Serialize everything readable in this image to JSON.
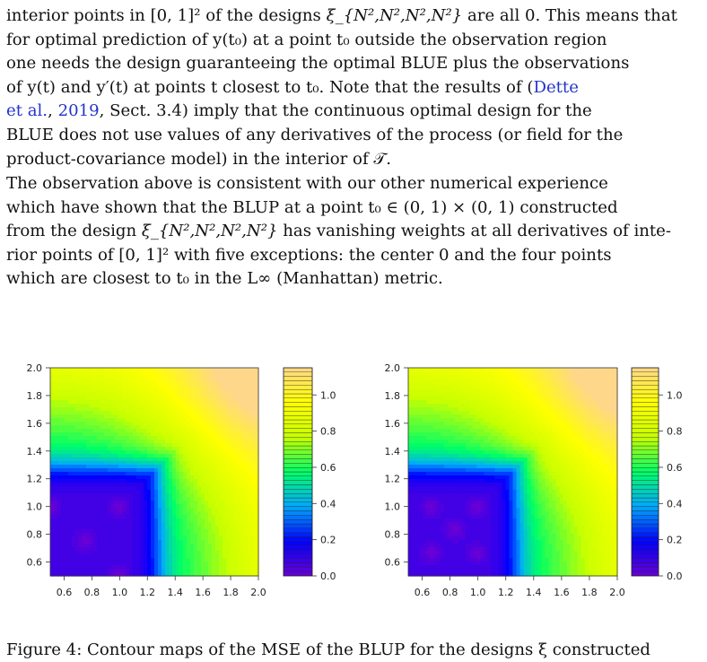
{
  "paragraph1": {
    "line1a": "interior points in ",
    "line1b": " of the designs ",
    "line1c": " are all 0. This means that",
    "set_unit_square": "[0, 1]²",
    "design_symbol": "ξ_{N²,N²,N²,N²}",
    "line2": "for optimal prediction of y(t₀) at a point t₀ outside the observation region",
    "line3": "one needs the design guaranteeing the optimal BLUE plus the observations",
    "line4a": "of y(t) and y′(t) at points t closest to t₀. Note that the results of (",
    "cite1": "Dette",
    "cite2": "et al.",
    "cite_sep": ", ",
    "cite_year": "2019",
    "line5b": ", Sect. 3.4) imply that the continuous optimal design for the",
    "line6": "BLUE does not use values of any derivatives of the process (or field for the",
    "line7": "product-covariance model) in the interior of 𝒯."
  },
  "paragraph2": {
    "line1": "The observation above is consistent with our other numerical experience",
    "line2": "which have shown that the BLUP at a point t₀ ∈ (0, 1) × (0, 1) constructed",
    "line3a": "from the design ",
    "line3b": " has vanishing weights at all derivatives of inte-",
    "design_symbol": "ξ_{N²,N²,N²,N²}",
    "line4": "rior points of [0, 1]² with five exceptions: the center 0 and the four points",
    "line5": "which are closest to t₀ in the L∞ (Manhattan) metric."
  },
  "figure": {
    "y_ticks": [
      "0.6",
      "0.8",
      "1.0",
      "1.2",
      "1.4",
      "1.6",
      "1.8",
      "2.0"
    ],
    "x_ticks": [
      "0.6",
      "0.8",
      "1.0",
      "1.2",
      "1.4",
      "1.6",
      "1.8",
      "2.0"
    ],
    "colorbar_ticks": [
      "0.0",
      "0.2",
      "0.4",
      "0.6",
      "0.8",
      "1.0"
    ]
  },
  "chart_data": [
    {
      "type": "heatmap",
      "title": "",
      "xlabel": "",
      "ylabel": "",
      "xlim": [
        0.5,
        2.0
      ],
      "ylim": [
        0.5,
        2.0
      ],
      "zlim": [
        0.0,
        1.15
      ],
      "x_ticks": [
        0.6,
        0.8,
        1.0,
        1.2,
        1.4,
        1.6,
        1.8,
        2.0
      ],
      "y_ticks": [
        0.6,
        0.8,
        1.0,
        1.2,
        1.4,
        1.6,
        1.8,
        2.0
      ],
      "colorbar_ticks": [
        0.0,
        0.2,
        0.4,
        0.6,
        0.8,
        1.0
      ],
      "colormap": [
        "#6a00d5",
        "#0000ff",
        "#00a8ff",
        "#00ff66",
        "#c8ff00",
        "#ffff00",
        "#ffd78a"
      ],
      "low_region_corners": [
        [
          1.0,
          1.0
        ],
        [
          0.75,
          0.75
        ],
        [
          0.5,
          1.0
        ],
        [
          1.0,
          0.5
        ]
      ]
    },
    {
      "type": "heatmap",
      "title": "",
      "xlabel": "",
      "ylabel": "",
      "xlim": [
        0.5,
        2.0
      ],
      "ylim": [
        0.5,
        2.0
      ],
      "zlim": [
        0.0,
        1.15
      ],
      "x_ticks": [
        0.6,
        0.8,
        1.0,
        1.2,
        1.4,
        1.6,
        1.8,
        2.0
      ],
      "y_ticks": [
        0.6,
        0.8,
        1.0,
        1.2,
        1.4,
        1.6,
        1.8,
        2.0
      ],
      "colorbar_ticks": [
        0.0,
        0.2,
        0.4,
        0.6,
        0.8,
        1.0
      ],
      "colormap": [
        "#6a00d5",
        "#0000ff",
        "#00a8ff",
        "#00ff66",
        "#c8ff00",
        "#ffff00",
        "#ffd78a"
      ],
      "low_region_corners": [
        [
          0.667,
          1.0
        ],
        [
          1.0,
          1.0
        ],
        [
          0.667,
          0.667
        ],
        [
          1.0,
          0.667
        ],
        [
          0.833,
          0.833
        ]
      ]
    }
  ],
  "caption": {
    "text": "Figure 4: Contour maps of the MSE of the BLUP for the designs ξ constructed"
  }
}
